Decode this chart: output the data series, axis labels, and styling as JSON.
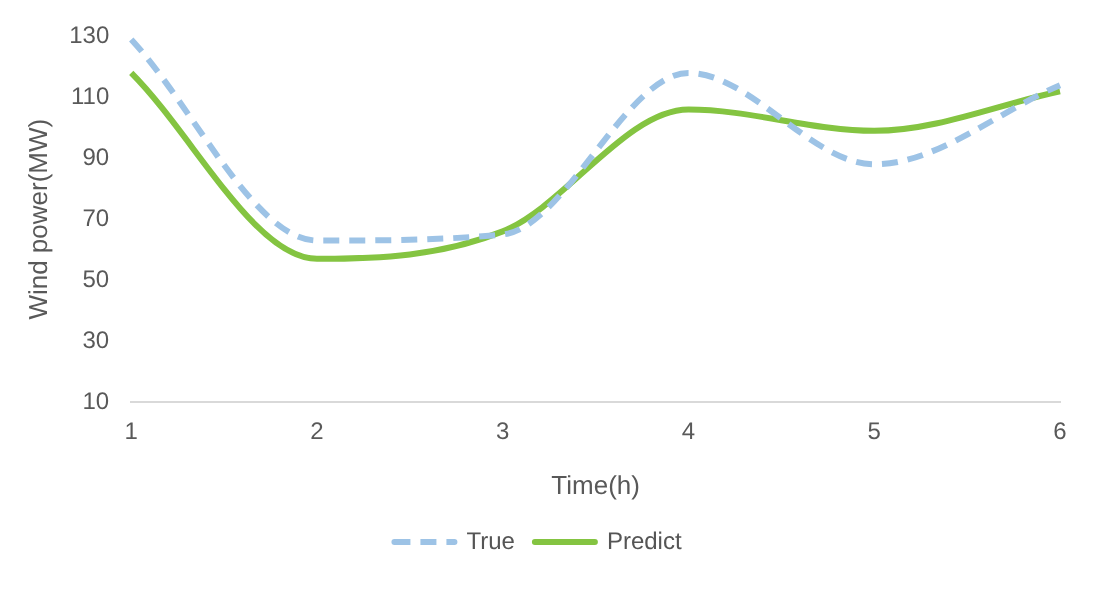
{
  "chart_data": {
    "type": "line",
    "xlabel": "Time(h)",
    "ylabel": "Wind power(MW)",
    "categories": [
      "1",
      "2",
      "3",
      "4",
      "5",
      "6"
    ],
    "series": [
      {
        "name": "True",
        "color": "#9dc3e6",
        "line_style": "dashed",
        "values": [
          129,
          63,
          65,
          118,
          88,
          114
        ]
      },
      {
        "name": "Predict",
        "color": "#84c441",
        "line_style": "solid",
        "values": [
          118,
          57,
          66,
          106,
          99,
          112
        ]
      }
    ],
    "ylim": [
      10,
      130
    ],
    "yticks": [
      10,
      30,
      50,
      70,
      90,
      110,
      130
    ],
    "grid": false,
    "legend": "bottom",
    "marker": "none"
  }
}
